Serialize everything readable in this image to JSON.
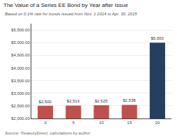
{
  "chart_data": {
    "type": "bar",
    "title": "The Value of a Series EE Bond by Year after Issue",
    "subtitle": "Based on 0.1% rate for bonds issued from Nov. 1 2014 to Apr. 30, 2015",
    "annotations": [
      "Source: TreasuryDirect, calculations by author"
    ],
    "categories": [
      "0",
      "5",
      "10",
      "15",
      "20"
    ],
    "values": [
      2500,
      2513,
      2525,
      2538,
      5000
    ],
    "value_labels": [
      "$2,500",
      "$2,513",
      "$2,525",
      "$2,538",
      "$5,000"
    ],
    "data_labels": true,
    "colors": [
      "#c0504d",
      "#c0504d",
      "#c0504d",
      "#c0504d",
      "#243f60"
    ],
    "ylim": [
      2000,
      5750
    ],
    "yticks": [
      {
        "value": 2000,
        "label": "$2,000.00"
      },
      {
        "value": 2500,
        "label": "$2,500.00"
      },
      {
        "value": 3000,
        "label": "$3,000.00"
      },
      {
        "value": 3500,
        "label": "$3,500.00"
      },
      {
        "value": 4000,
        "label": "$4,000.00"
      },
      {
        "value": 4500,
        "label": "$4,500.00"
      },
      {
        "value": 5000,
        "label": "$5,000.00"
      },
      {
        "value": 5500,
        "label": "$5,500.00"
      }
    ],
    "grid": true
  }
}
